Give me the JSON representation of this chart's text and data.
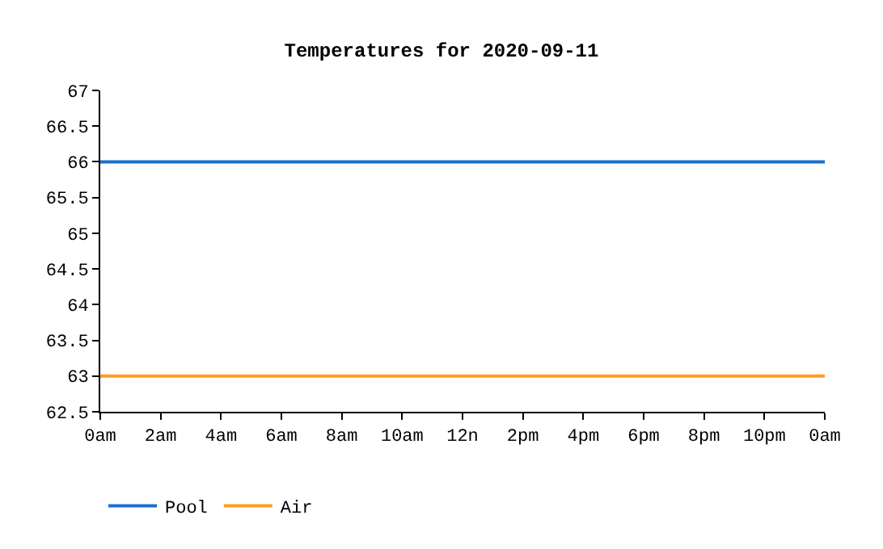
{
  "chart_data": {
    "type": "line",
    "title": "Temperatures for 2020-09-11",
    "x": [
      "2020-09-11T00:00",
      "2020-09-12T00:00"
    ],
    "series": [
      {
        "name": "Pool",
        "color": "#1a6fcc",
        "values": [
          66,
          66
        ]
      },
      {
        "name": "Air",
        "color": "#ff9b21",
        "values": [
          63,
          63
        ]
      }
    ],
    "xlim": [
      "2020-09-11T00:00",
      "2020-09-12T00:00"
    ],
    "xticks": [
      {
        "value": "2020-09-11T00:00",
        "label": "0am"
      },
      {
        "value": "2020-09-11T02:00",
        "label": "2am"
      },
      {
        "value": "2020-09-11T04:00",
        "label": "4am"
      },
      {
        "value": "2020-09-11T06:00",
        "label": "6am"
      },
      {
        "value": "2020-09-11T08:00",
        "label": "8am"
      },
      {
        "value": "2020-09-11T10:00",
        "label": "10am"
      },
      {
        "value": "2020-09-11T12:00",
        "label": "12n"
      },
      {
        "value": "2020-09-11T14:00",
        "label": "2pm"
      },
      {
        "value": "2020-09-11T16:00",
        "label": "4pm"
      },
      {
        "value": "2020-09-11T18:00",
        "label": "6pm"
      },
      {
        "value": "2020-09-11T20:00",
        "label": "8pm"
      },
      {
        "value": "2020-09-11T22:00",
        "label": "10pm"
      },
      {
        "value": "2020-09-12T00:00",
        "label": "0am"
      }
    ],
    "ylim": [
      62.5,
      67
    ],
    "yticks": [
      62.5,
      63,
      63.5,
      64,
      64.5,
      65,
      65.5,
      66,
      66.5,
      67
    ],
    "grid": false,
    "legend": "bottom",
    "marker": "none",
    "line_style": "solid"
  }
}
